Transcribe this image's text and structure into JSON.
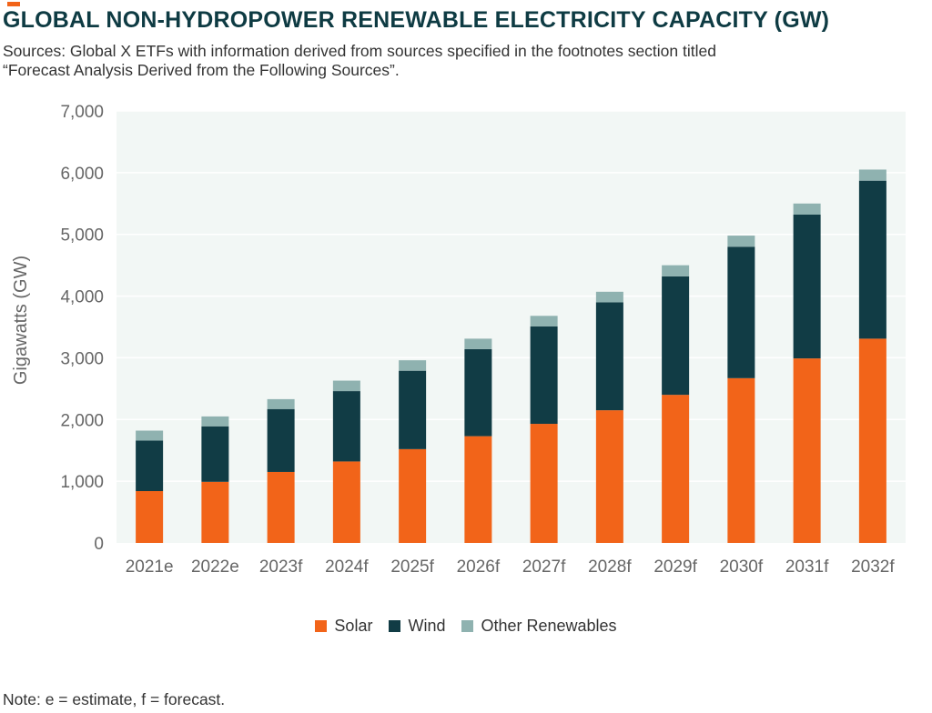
{
  "colors": {
    "accent": "#f26419",
    "title": "#0e3b43",
    "solar": "#f26419",
    "wind": "#113c45",
    "other": "#8fb2b0",
    "plot_bg": "#f2f7f5",
    "grid": "#ffffff",
    "tick": "#666666"
  },
  "header": {
    "title": "GLOBAL NON-HYDROPOWER RENEWABLE ELECTRICITY CAPACITY (GW)",
    "subtitle_line1": "Sources: Global X ETFs with information derived from sources specified in the footnotes section titled",
    "subtitle_line2": "“Forecast Analysis Derived from the Following Sources”."
  },
  "footer": {
    "note": "Note: e = estimate, f = forecast."
  },
  "chart_data": {
    "type": "bar",
    "stacked": true,
    "categories": [
      "2021e",
      "2022e",
      "2023f",
      "2024f",
      "2025f",
      "2026f",
      "2027f",
      "2028f",
      "2029f",
      "2030f",
      "2031f",
      "2032f"
    ],
    "series": [
      {
        "name": "Solar",
        "values": [
          840,
          990,
          1150,
          1320,
          1520,
          1730,
          1930,
          2150,
          2400,
          2670,
          2990,
          3310
        ]
      },
      {
        "name": "Wind",
        "values": [
          820,
          900,
          1020,
          1140,
          1270,
          1410,
          1580,
          1750,
          1920,
          2130,
          2330,
          2560
        ]
      },
      {
        "name": "Other Renewables",
        "values": [
          160,
          160,
          160,
          170,
          170,
          170,
          170,
          170,
          180,
          180,
          180,
          180
        ]
      }
    ],
    "ylabel": "Gigawatts (GW)",
    "xlabel": "",
    "ylim": [
      0,
      7000
    ],
    "yticks": [
      "0",
      "1,000",
      "2,000",
      "3,000",
      "4,000",
      "5,000",
      "6,000",
      "7,000"
    ],
    "grid": true,
    "legend_position": "bottom-center"
  }
}
